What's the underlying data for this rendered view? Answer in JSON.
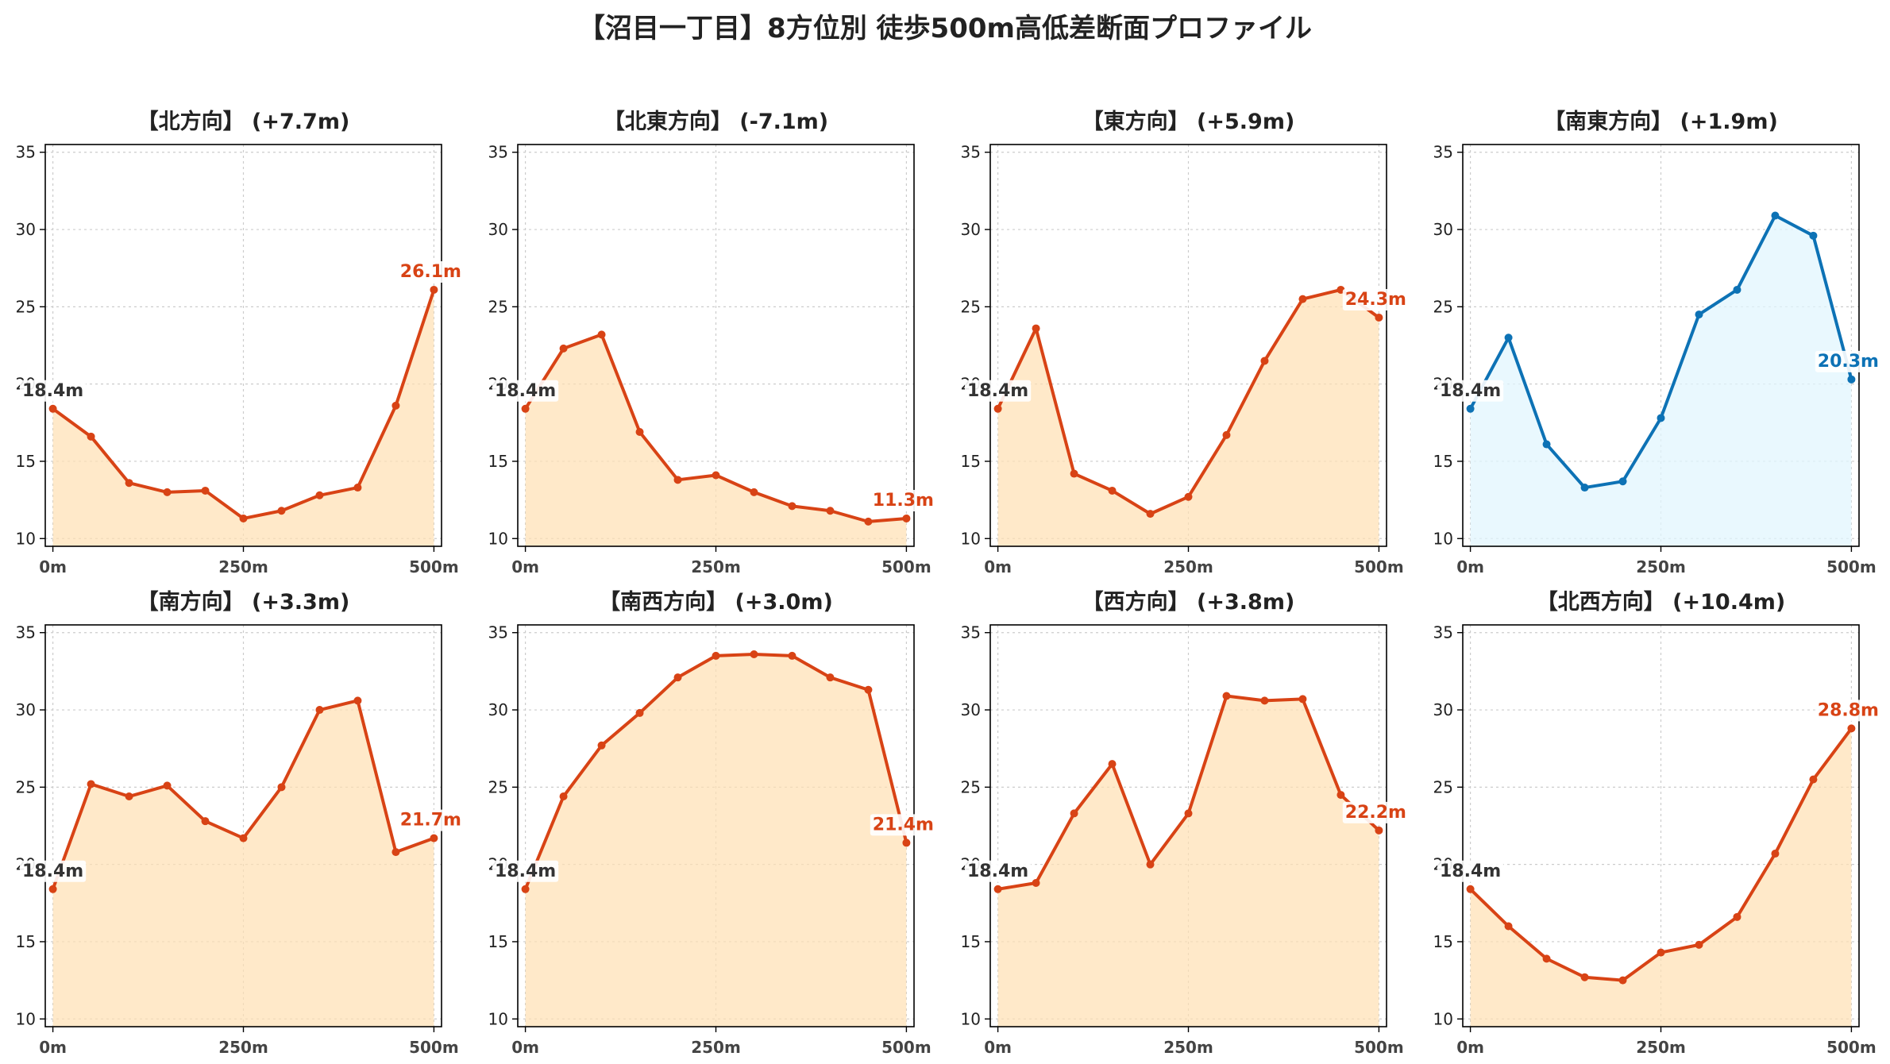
{
  "title": "【沼目一丁目】8方位別 徒歩500m高低差断面プロファイル",
  "colors": {
    "line_default": "#d84315",
    "fill_default": "#ffe0b2",
    "line_southeast": "#0d72b5",
    "fill_southeast": "#e1f5fe",
    "start_label": "#333333",
    "grid": "#cccccc"
  },
  "chart_data": [
    {
      "type": "area",
      "title": "【北方向】 (+7.7m)",
      "x": [
        0,
        50,
        100,
        150,
        200,
        250,
        300,
        350,
        400,
        450,
        500
      ],
      "values": [
        18.4,
        16.6,
        13.6,
        13.0,
        13.1,
        11.3,
        11.8,
        12.8,
        13.3,
        18.6,
        26.1
      ],
      "start_label": "18.4m",
      "end_label": "26.1m",
      "xticks": [
        "0m",
        "250m",
        "500m"
      ],
      "yticks": [
        10,
        15,
        20,
        25,
        30,
        35
      ],
      "ylim": [
        9.5,
        35.5
      ],
      "xlim": [
        -10,
        510
      ],
      "grid": true
    },
    {
      "type": "area",
      "title": "【北東方向】 (-7.1m)",
      "x": [
        0,
        50,
        100,
        150,
        200,
        250,
        300,
        350,
        400,
        450,
        500
      ],
      "values": [
        18.4,
        22.3,
        23.2,
        16.9,
        13.8,
        14.1,
        13.0,
        12.1,
        11.8,
        11.1,
        11.3
      ],
      "start_label": "18.4m",
      "end_label": "11.3m",
      "xticks": [
        "0m",
        "250m",
        "500m"
      ],
      "yticks": [
        10,
        15,
        20,
        25,
        30,
        35
      ],
      "ylim": [
        9.5,
        35.5
      ],
      "xlim": [
        -10,
        510
      ],
      "grid": true
    },
    {
      "type": "area",
      "title": "【東方向】 (+5.9m)",
      "x": [
        0,
        50,
        100,
        150,
        200,
        250,
        300,
        350,
        400,
        450,
        500
      ],
      "values": [
        18.4,
        23.6,
        14.2,
        13.1,
        11.6,
        12.7,
        16.7,
        21.5,
        25.5,
        26.1,
        24.3
      ],
      "start_label": "18.4m",
      "end_label": "24.3m",
      "xticks": [
        "0m",
        "250m",
        "500m"
      ],
      "yticks": [
        10,
        15,
        20,
        25,
        30,
        35
      ],
      "ylim": [
        9.5,
        35.5
      ],
      "xlim": [
        -10,
        510
      ],
      "grid": true
    },
    {
      "type": "area",
      "title": "【南東方向】 (+1.9m)",
      "x": [
        0,
        50,
        100,
        150,
        200,
        250,
        300,
        350,
        400,
        450,
        500
      ],
      "values": [
        18.4,
        23.0,
        16.1,
        13.3,
        13.7,
        17.8,
        24.5,
        26.1,
        30.9,
        29.6,
        20.3
      ],
      "start_label": "18.4m",
      "end_label": "20.3m",
      "xticks": [
        "0m",
        "250m",
        "500m"
      ],
      "yticks": [
        10,
        15,
        20,
        25,
        30,
        35
      ],
      "ylim": [
        9.5,
        35.5
      ],
      "xlim": [
        -10,
        510
      ],
      "grid": true
    },
    {
      "type": "area",
      "title": "【南方向】 (+3.3m)",
      "x": [
        0,
        50,
        100,
        150,
        200,
        250,
        300,
        350,
        400,
        450,
        500
      ],
      "values": [
        18.4,
        25.2,
        24.4,
        25.1,
        22.8,
        21.7,
        25.0,
        30.0,
        30.6,
        20.8,
        21.7
      ],
      "start_label": "18.4m",
      "end_label": "21.7m",
      "xticks": [
        "0m",
        "250m",
        "500m"
      ],
      "yticks": [
        10,
        15,
        20,
        25,
        30,
        35
      ],
      "ylim": [
        9.5,
        35.5
      ],
      "xlim": [
        -10,
        510
      ],
      "grid": true
    },
    {
      "type": "area",
      "title": "【南西方向】 (+3.0m)",
      "x": [
        0,
        50,
        100,
        150,
        200,
        250,
        300,
        350,
        400,
        450,
        500
      ],
      "values": [
        18.4,
        24.4,
        27.7,
        29.8,
        32.1,
        33.5,
        33.6,
        33.5,
        32.1,
        31.3,
        21.4
      ],
      "start_label": "18.4m",
      "end_label": "21.4m",
      "xticks": [
        "0m",
        "250m",
        "500m"
      ],
      "yticks": [
        10,
        15,
        20,
        25,
        30,
        35
      ],
      "ylim": [
        9.5,
        35.5
      ],
      "xlim": [
        -10,
        510
      ],
      "grid": true
    },
    {
      "type": "area",
      "title": "【西方向】 (+3.8m)",
      "x": [
        0,
        50,
        100,
        150,
        200,
        250,
        300,
        350,
        400,
        450,
        500
      ],
      "values": [
        18.4,
        18.8,
        23.3,
        26.5,
        20.0,
        23.3,
        30.9,
        30.6,
        30.7,
        24.5,
        22.2
      ],
      "start_label": "18.4m",
      "end_label": "22.2m",
      "xticks": [
        "0m",
        "250m",
        "500m"
      ],
      "yticks": [
        10,
        15,
        20,
        25,
        30,
        35
      ],
      "ylim": [
        9.5,
        35.5
      ],
      "xlim": [
        -10,
        510
      ],
      "grid": true
    },
    {
      "type": "area",
      "title": "【北西方向】 (+10.4m)",
      "x": [
        0,
        50,
        100,
        150,
        200,
        250,
        300,
        350,
        400,
        450,
        500
      ],
      "values": [
        18.4,
        16.0,
        13.9,
        12.7,
        12.5,
        14.3,
        14.8,
        16.6,
        20.7,
        25.5,
        28.8
      ],
      "start_label": "18.4m",
      "end_label": "28.8m",
      "xticks": [
        "0m",
        "250m",
        "500m"
      ],
      "yticks": [
        10,
        15,
        20,
        25,
        30,
        35
      ],
      "ylim": [
        9.5,
        35.5
      ],
      "xlim": [
        -10,
        510
      ],
      "grid": true
    }
  ]
}
